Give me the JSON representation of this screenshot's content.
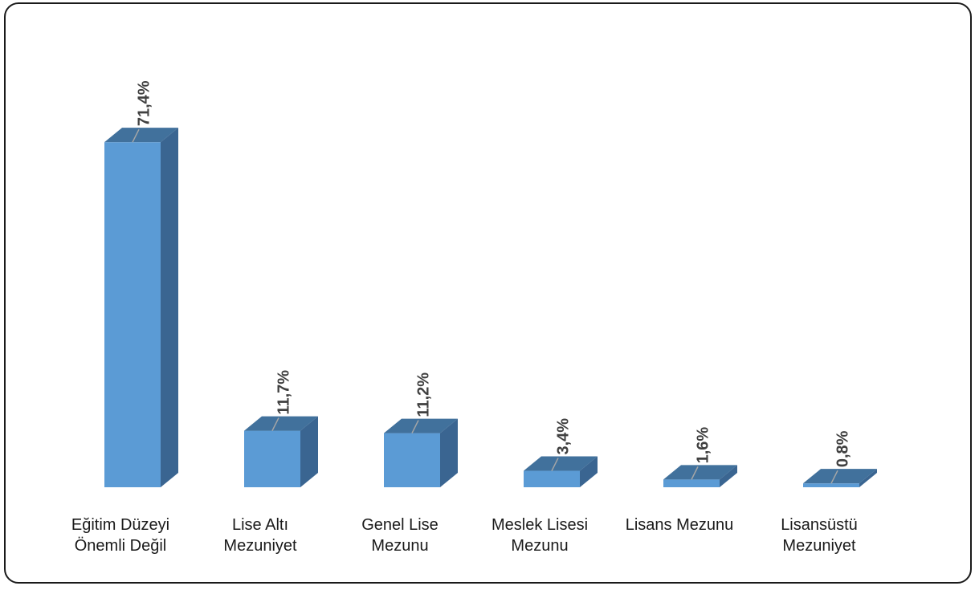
{
  "chart_data": {
    "type": "bar",
    "style": "3d-column",
    "categories": [
      [
        "Eğitim Düzeyi",
        "Önemli Değil"
      ],
      [
        "Lise Altı",
        "Mezuniyet"
      ],
      [
        "Genel Lise",
        "Mezunu"
      ],
      [
        "Meslek Lisesi",
        "Mezunu"
      ],
      [
        "Lisans Mezunu"
      ],
      [
        "Lisansüstü",
        "Mezuniyet"
      ]
    ],
    "values": [
      71.4,
      11.7,
      11.2,
      3.4,
      1.6,
      0.8
    ],
    "data_labels": [
      "71,4%",
      "11,7%",
      "11,2%",
      "3,4%",
      "1,6%",
      "0,8%"
    ],
    "title": "",
    "xlabel": "",
    "ylabel": "",
    "ylim": [
      0,
      75
    ],
    "grid": false,
    "legend": "none",
    "colors": {
      "front": "#5b9bd5",
      "top": "#41719c",
      "side": "#3a6591",
      "leader": "#a6a6a6"
    }
  }
}
